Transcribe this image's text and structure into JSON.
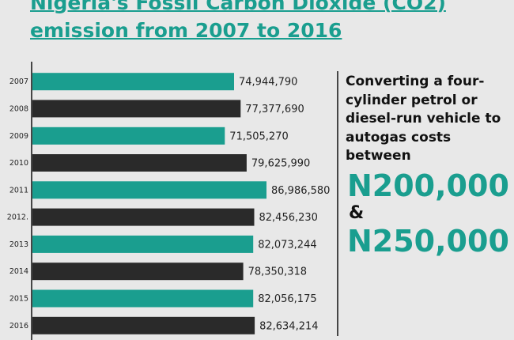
{
  "title": "Nigeria's Fossil Carbon Dioxide (CO2) emission from 2007 to 2016",
  "chart_data": {
    "type": "bar",
    "orientation": "horizontal",
    "categories": [
      "2007",
      "2008",
      "2009",
      "2010",
      "2011",
      "2012.",
      "2013",
      "2014",
      "2015",
      "2016"
    ],
    "values": [
      74944790,
      77377690,
      71505270,
      79625990,
      86986580,
      82456230,
      82073244,
      78350318,
      82056175,
      82634214
    ],
    "value_labels": [
      "74,944,790",
      "77,377,690",
      "71,505,270",
      "79,625,990",
      "86,986,580",
      "82,456,230",
      "82,073,244",
      "78,350,318",
      "82,056,175",
      "82,634,214"
    ],
    "bar_colors": [
      "#1a9e8f",
      "#2a2a2a",
      "#1a9e8f",
      "#2a2a2a",
      "#1a9e8f",
      "#2a2a2a",
      "#1a9e8f",
      "#2a2a2a",
      "#1a9e8f",
      "#2a2a2a"
    ],
    "axis_color": "#111111",
    "grid": false
  },
  "side": {
    "text": "Converting a four-cylinder petrol or diesel-run vehicle to autogas costs between",
    "amount1": "N200,000",
    "connector": "&",
    "amount2": "N250,000"
  },
  "colors": {
    "accent": "#1a9e8f",
    "dark": "#2a2a2a",
    "background": "#e8e8e8"
  }
}
